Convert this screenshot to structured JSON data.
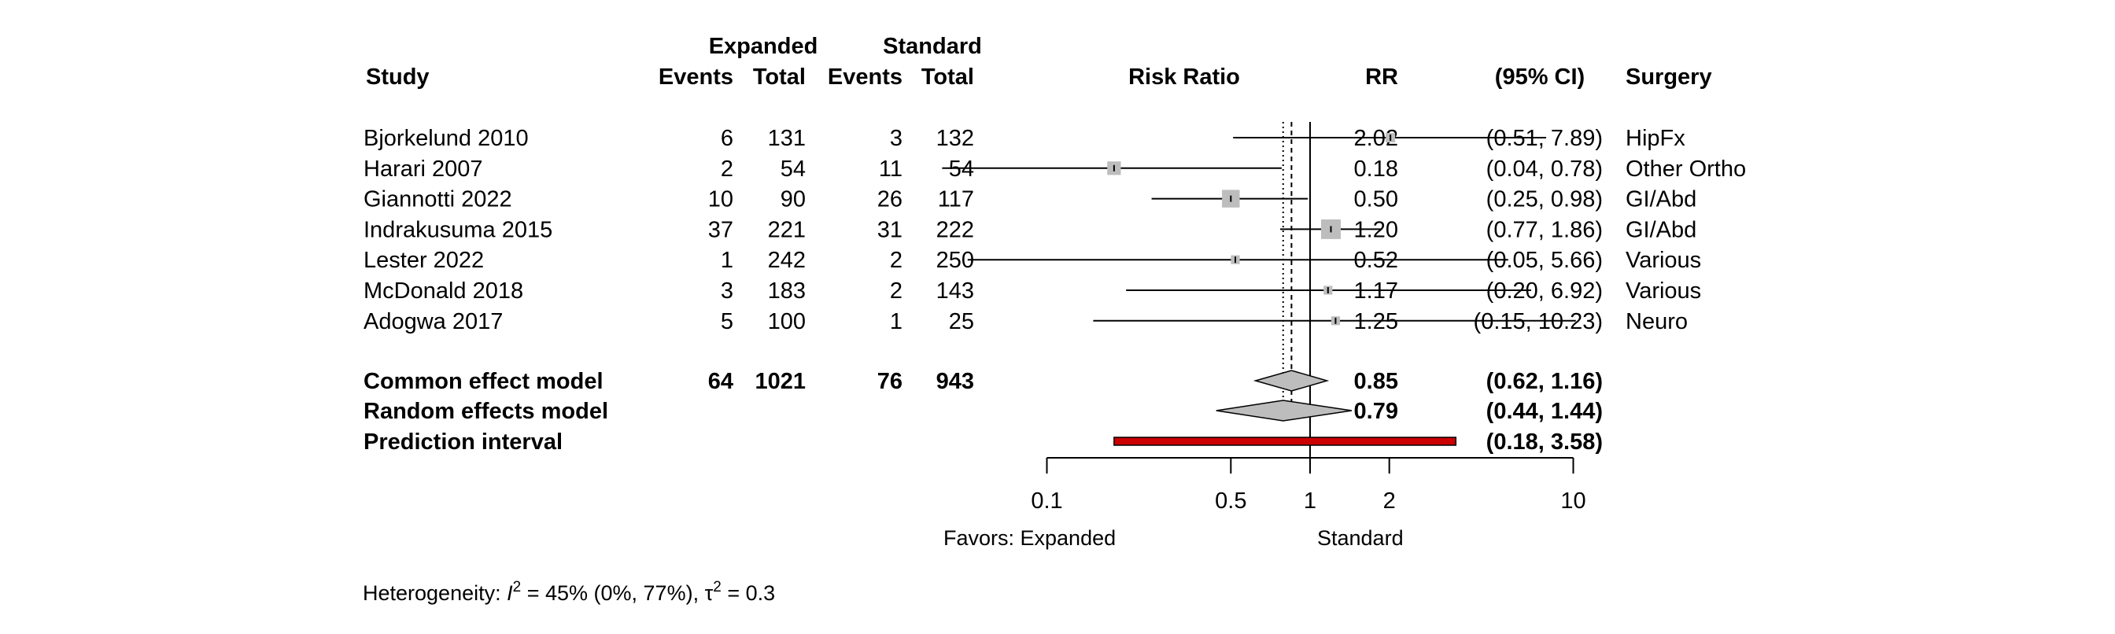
{
  "chart_data": {
    "type": "forest",
    "headers": {
      "study": "Study",
      "group1": "Expanded",
      "group2": "Standard",
      "events": "Events",
      "total": "Total",
      "measure": "Risk Ratio",
      "rr": "RR",
      "ci": "(95% CI)",
      "surgery": "Surgery"
    },
    "x_scale": "log",
    "x_ticks": [
      0.1,
      0.5,
      1,
      2,
      10
    ],
    "x_tick_labels": [
      "0.1",
      "0.5",
      "1",
      "2",
      "10"
    ],
    "xlim": [
      0.1,
      10
    ],
    "favors_left": "Favors: Expanded",
    "favors_right": "Standard",
    "studies": [
      {
        "name": "Bjorkelund 2010",
        "e1": "6",
        "n1": "131",
        "e2": "3",
        "n2": "132",
        "rr": 2.02,
        "lo": 0.51,
        "hi": 7.89,
        "rr_text": "2.02",
        "ci_text": "(0.51,  7.89)",
        "surgery": "HipFx",
        "weight": 0.04
      },
      {
        "name": "Harari 2007",
        "e1": "2",
        "n1": "54",
        "e2": "11",
        "n2": "54",
        "rr": 0.18,
        "lo": 0.04,
        "hi": 0.78,
        "rr_text": "0.18",
        "ci_text": "(0.04,  0.78)",
        "surgery": "Other Ortho",
        "weight": 0.14
      },
      {
        "name": "Giannotti 2022",
        "e1": "10",
        "n1": "90",
        "e2": "26",
        "n2": "117",
        "rr": 0.5,
        "lo": 0.25,
        "hi": 0.98,
        "rr_text": "0.50",
        "ci_text": "(0.25,  0.98)",
        "surgery": "GI/Abd",
        "weight": 0.3
      },
      {
        "name": "Indrakusuma 2015",
        "e1": "37",
        "n1": "221",
        "e2": "31",
        "n2": "222",
        "rr": 1.2,
        "lo": 0.77,
        "hi": 1.86,
        "rr_text": "1.20",
        "ci_text": "(0.77,  1.86)",
        "surgery": "GI/Abd",
        "weight": 0.4
      },
      {
        "name": "Lester 2022",
        "e1": "1",
        "n1": "242",
        "e2": "2",
        "n2": "250",
        "rr": 0.52,
        "lo": 0.05,
        "hi": 5.66,
        "rr_text": "0.52",
        "ci_text": "(0.05,  5.66)",
        "surgery": "Various",
        "weight": 0.03
      },
      {
        "name": "McDonald 2018",
        "e1": "3",
        "n1": "183",
        "e2": "2",
        "n2": "143",
        "rr": 1.17,
        "lo": 0.2,
        "hi": 6.92,
        "rr_text": "1.17",
        "ci_text": "(0.20,  6.92)",
        "surgery": "Various",
        "weight": 0.03
      },
      {
        "name": "Adogwa 2017",
        "e1": "5",
        "n1": "100",
        "e2": "1",
        "n2": "25",
        "rr": 1.25,
        "lo": 0.15,
        "hi": 10.23,
        "rr_text": "1.25",
        "ci_text": "(0.15, 10.23)",
        "surgery": "Neuro",
        "weight": 0.03
      }
    ],
    "common": {
      "name": "Common effect model",
      "e1": "64",
      "n1": "1021",
      "e2": "76",
      "n2": "943",
      "rr": 0.85,
      "lo": 0.62,
      "hi": 1.16,
      "rr_text": "0.85",
      "ci_text": "(0.62,  1.16)"
    },
    "random": {
      "name": "Random effects model",
      "rr": 0.79,
      "lo": 0.44,
      "hi": 1.44,
      "rr_text": "0.79",
      "ci_text": "(0.44,  1.44)"
    },
    "prediction": {
      "name": "Prediction interval",
      "lo": 0.18,
      "hi": 3.58,
      "ci_text": "(0.18,  3.58)"
    },
    "heterogeneity": {
      "prefix": "Heterogeneity: ",
      "i2_symbol": "I",
      "i2_sup": "2",
      "i2_value": " = 45% (0%, 77%), ",
      "tau_symbol": "τ",
      "tau_sup": "2",
      "tau_value": " = 0.3"
    },
    "colors": {
      "box": "#bdbdbd",
      "diamond": "#bdbdbd",
      "prediction": "#cc0000"
    }
  }
}
